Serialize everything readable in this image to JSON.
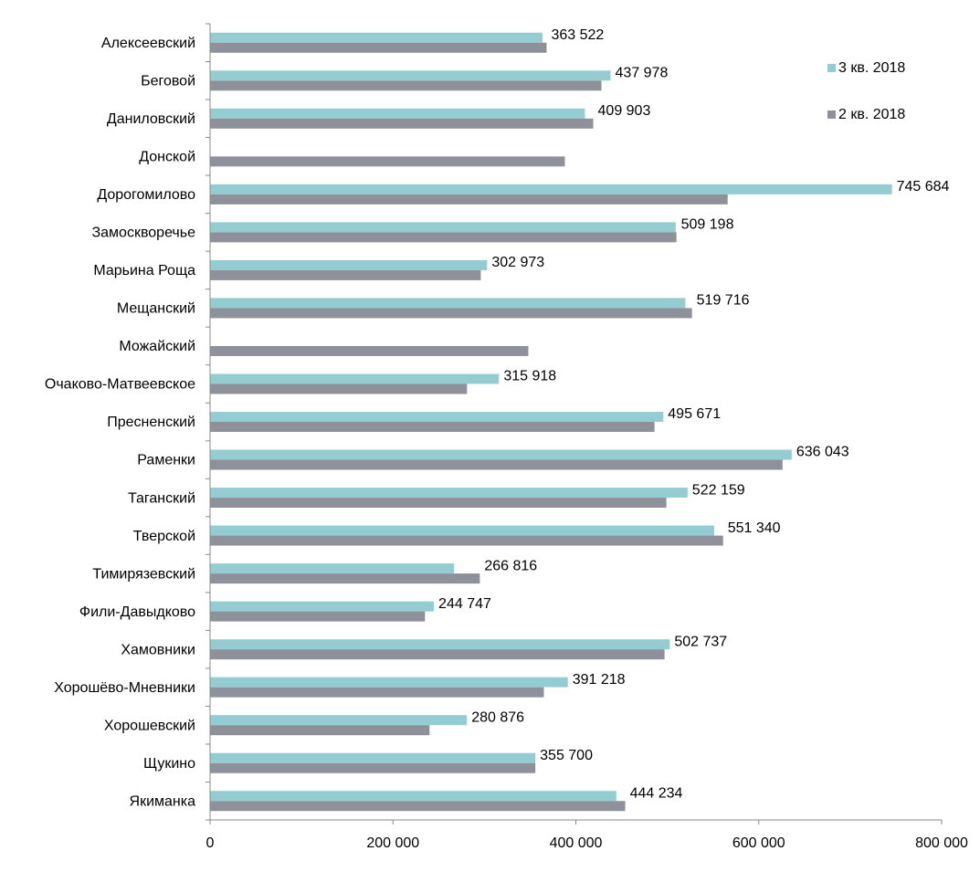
{
  "chart_data": {
    "type": "bar",
    "orientation": "horizontal",
    "categories": [
      "Алексеевский",
      "Беговой",
      "Даниловский",
      "Донской",
      "Дорогомилово",
      "Замоскворечье",
      "Марьина Роща",
      "Мещанский",
      "Можайский",
      "Очаково-Матвеевское",
      "Пресненский",
      "Раменки",
      "Таганский",
      "Тверской",
      "Тимирязевский",
      "Фили-Давыдково",
      "Хамовники",
      "Хорошёво-Мневники",
      "Хорошевский",
      "Щукино",
      "Якиманка"
    ],
    "series": [
      {
        "name": "3 кв. 2018",
        "color": "#93CDD1",
        "values": [
          363522,
          437978,
          409903,
          null,
          745684,
          509198,
          302973,
          519716,
          null,
          315918,
          495671,
          636043,
          522159,
          551340,
          266816,
          244747,
          502737,
          391218,
          280876,
          355700,
          444234
        ],
        "labels": [
          "363 522",
          "437 978",
          "409 903",
          "",
          "745 684",
          "509 198",
          "302 973",
          "519 716",
          "",
          "315 918",
          "495 671",
          "636 043",
          "522 159",
          "551 340",
          "266 816",
          "244 747",
          "502 737",
          "391 218",
          "280 876",
          "355 700",
          "444 234"
        ]
      },
      {
        "name": "2 кв. 2018",
        "color": "#8E9199",
        "values": [
          368000,
          428000,
          419000,
          388000,
          566000,
          510000,
          296000,
          527000,
          348000,
          281000,
          486000,
          626000,
          499000,
          561000,
          295000,
          235000,
          497000,
          365000,
          240000,
          355700,
          454000
        ]
      }
    ],
    "xlim": [
      0,
      800000
    ],
    "xticks": [
      0,
      200000,
      400000,
      600000,
      800000
    ],
    "xtick_labels": [
      "0",
      "200 000",
      "400 000",
      "600 000",
      "800 000"
    ],
    "legend_position": "top-right",
    "grid": false
  }
}
